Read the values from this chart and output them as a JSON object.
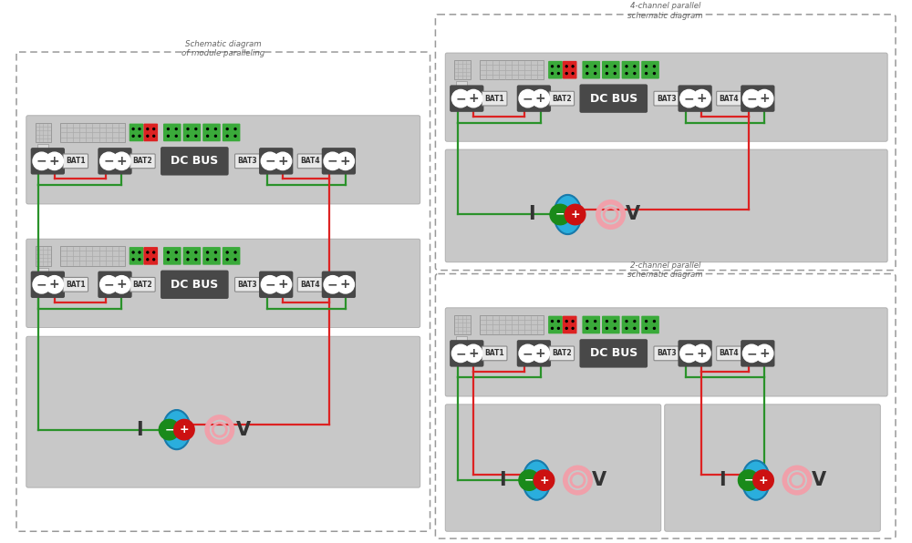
{
  "bg_color": "#ffffff",
  "panel_bg": "#c8c8c8",
  "dark_block": "#484848",
  "green_conn": "#3aaa3a",
  "red_conn": "#dd2222",
  "green_wire": "#2a922a",
  "red_wire": "#dd2222",
  "blue_oval": "#2aaedd",
  "pink_ring": "#f0a0aa",
  "label_bg": "#e0e0e0",
  "title_left": "Schematic diagram\nof module paralleling",
  "title_rt": "4-channel parallel\nschematic diagram",
  "title_rb": "2-channel parallel\nschematic diagram",
  "pcb_bg": "#c0c0c0",
  "pcb_border": "#909090"
}
